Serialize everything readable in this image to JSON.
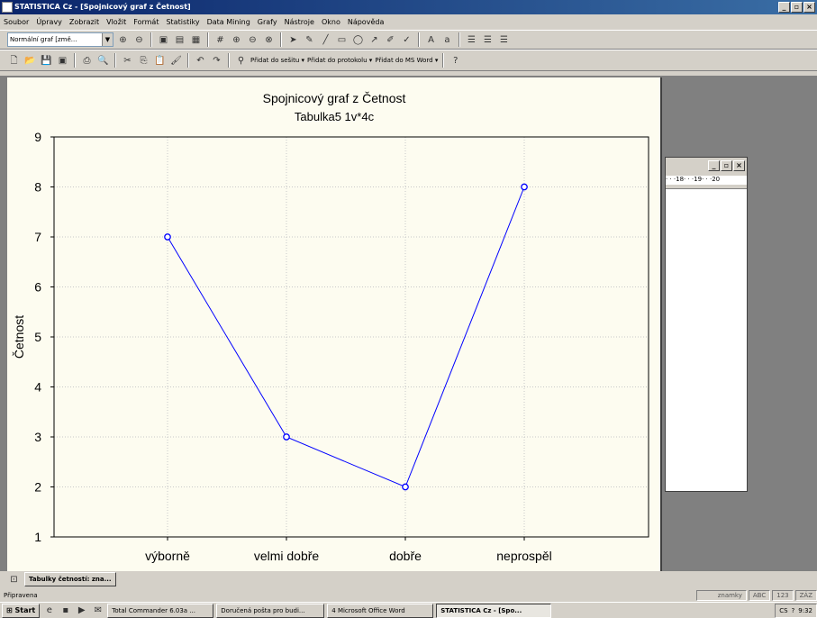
{
  "titlebar": {
    "title": "STATISTICA Cz - [Spojnicový graf z Četnost]"
  },
  "menu": [
    "Soubor",
    "Úpravy",
    "Zobrazit",
    "Vložit",
    "Formát",
    "Statistiky",
    "Data Mining",
    "Grafy",
    "Nástroje",
    "Okno",
    "Nápověda"
  ],
  "toolbar1": {
    "combo_value": "Normální graf [změ..."
  },
  "toolbar2": {
    "add_workbook": "Přidat do sešitu ▾",
    "add_report": "Přidat do protokolu ▾",
    "add_word": "Přidat do MS Word ▾"
  },
  "sidewin": {
    "ruler": "· · ·18· · ·19· · ·20"
  },
  "tabs": [
    "Tabulky četností: zna..."
  ],
  "status": {
    "text": "Připravena",
    "cells": [
      "znamky",
      "ABC",
      "123",
      "ZÁZ"
    ]
  },
  "taskbar": {
    "start": "Start",
    "tasks": [
      "Total Commander 6.03a ...",
      "Doručená pošta pro budi...",
      "4 Microsoft Office Word",
      "STATISTICA Cz - [Spo..."
    ],
    "clock": "9:32"
  },
  "chart_data": {
    "type": "line",
    "title": "Spojnicový graf z Četnost",
    "subtitle": "Tabulka5 1v*4c",
    "ylabel": "Četnost",
    "xlabel": "",
    "categories": [
      "výborně",
      "velmi dobře",
      "dobře",
      "neprospěl"
    ],
    "values": [
      7,
      3,
      2,
      8
    ],
    "ylim": [
      1,
      9
    ],
    "yticks": [
      1,
      2,
      3,
      4,
      5,
      6,
      7,
      8,
      9
    ],
    "grid": true,
    "line_color": "#0000ff"
  }
}
